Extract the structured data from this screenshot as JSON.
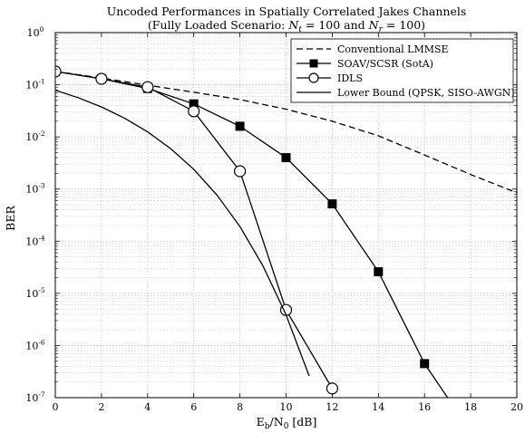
{
  "chart_data": {
    "type": "line",
    "title_line1": "Uncoded Performances in Spatially Correlated Jakes Channels",
    "title_line2_prefix": "(Fully Loaded Scenario: ",
    "title_nt_sym": "N",
    "title_nt_sub": "t",
    "title_eq1": " = 100 and ",
    "title_nr_sym": "N",
    "title_nr_sub": "r",
    "title_eq2": " = 100)",
    "xlabel_e": "E",
    "xlabel_b": "b",
    "xlabel_slash": "/N",
    "xlabel_zero": "0",
    "xlabel_unit": " [dB]",
    "ylabel": "BER",
    "xlim": [
      0,
      20
    ],
    "ylim": [
      1e-07,
      1
    ],
    "yscale": "log",
    "grid": true,
    "legend_position": "top-right",
    "x_ticks": [
      0,
      2,
      4,
      6,
      8,
      10,
      12,
      14,
      16,
      18,
      20
    ],
    "x_tick_labels": [
      "0",
      "2",
      "4",
      "6",
      "8",
      "10",
      "12",
      "14",
      "16",
      "18",
      "20"
    ],
    "y_ticks": [
      {
        "exp": 0,
        "base": "10",
        "sup": "0"
      },
      {
        "exp": -1,
        "base": "10",
        "sup": "-1"
      },
      {
        "exp": -2,
        "base": "10",
        "sup": "-2"
      },
      {
        "exp": -3,
        "base": "10",
        "sup": "-3"
      },
      {
        "exp": -4,
        "base": "10",
        "sup": "-4"
      },
      {
        "exp": -5,
        "base": "10",
        "sup": "-5"
      },
      {
        "exp": -6,
        "base": "10",
        "sup": "-6"
      },
      {
        "exp": -7,
        "base": "10",
        "sup": "-7"
      }
    ],
    "series": [
      {
        "name": "Conventional LMMSE",
        "style": "dashed",
        "marker": "none",
        "x": [
          0,
          2,
          4,
          6,
          8,
          10,
          12,
          14,
          16,
          18,
          20
        ],
        "y": [
          0.18,
          0.135,
          0.098,
          0.072,
          0.052,
          0.034,
          0.02,
          0.0105,
          0.0045,
          0.0019,
          0.00085
        ]
      },
      {
        "name": "SOAV/SCSR (SotA)",
        "style": "solid",
        "marker": "square",
        "x": [
          0,
          2,
          4,
          6,
          8,
          10,
          12,
          14,
          16,
          17
        ],
        "y": [
          0.18,
          0.13,
          0.085,
          0.043,
          0.016,
          0.004,
          0.00052,
          2.6e-05,
          4.5e-07,
          1e-07
        ],
        "marker_count": 9
      },
      {
        "name": "IDLS",
        "style": "solid",
        "marker": "circle",
        "x": [
          0,
          2,
          4,
          6,
          8,
          10,
          12
        ],
        "y": [
          0.18,
          0.13,
          0.09,
          0.031,
          0.0022,
          4.8e-06,
          1.5e-07
        ]
      },
      {
        "name": "Lower Bound (QPSK, SISO-AWGN)",
        "style": "solid",
        "marker": "none",
        "x": [
          0,
          1,
          2,
          3,
          4,
          5,
          6,
          7,
          8,
          9,
          10,
          11
        ],
        "y": [
          0.0786,
          0.0563,
          0.0375,
          0.0229,
          0.0125,
          0.00595,
          0.00239,
          0.000773,
          0.000191,
          3.36e-05,
          3.87e-06,
          2.61e-07
        ]
      }
    ]
  }
}
